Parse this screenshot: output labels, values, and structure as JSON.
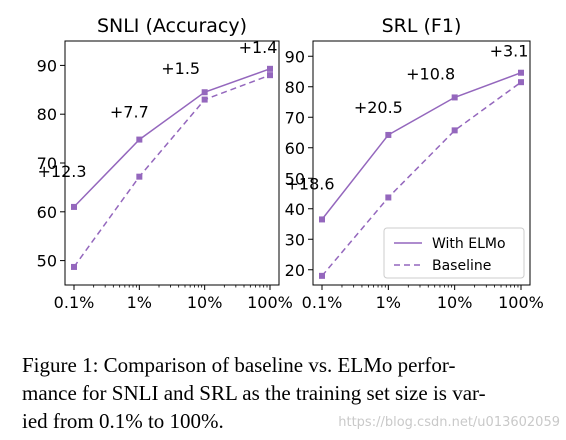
{
  "colors": {
    "series": "#9467bd",
    "axis": "#000000",
    "background": "#ffffff",
    "watermark": "#c9c9c9"
  },
  "chart_data": [
    {
      "type": "line",
      "title": "SNLI (Accuracy)",
      "xlabel": "",
      "ylabel": "",
      "x_scale": "log",
      "categories": [
        "0.1%",
        "1%",
        "10%",
        "100%"
      ],
      "x": [
        0.1,
        1,
        10,
        100
      ],
      "ylim": [
        45,
        95
      ],
      "yticks": [
        50,
        60,
        70,
        80,
        90
      ],
      "series": [
        {
          "name": "With ELMo",
          "style": "solid",
          "values": [
            61,
            74.8,
            84.5,
            89.3
          ]
        },
        {
          "name": "Baseline",
          "style": "dashed",
          "values": [
            48.7,
            67.2,
            83,
            88
          ]
        }
      ],
      "annotations": [
        {
          "text": "+12.3",
          "x": 0.1,
          "y": 61
        },
        {
          "text": "+7.7",
          "x": 1,
          "y": 74.8
        },
        {
          "text": "+1.5",
          "x": 10,
          "y": 84.5
        },
        {
          "text": "+1.4",
          "x": 100,
          "y": 89.3
        }
      ],
      "legend": null,
      "grid": false
    },
    {
      "type": "line",
      "title": "SRL (F1)",
      "xlabel": "",
      "ylabel": "",
      "x_scale": "log",
      "categories": [
        "0.1%",
        "1%",
        "10%",
        "100%"
      ],
      "x": [
        0.1,
        1,
        10,
        100
      ],
      "ylim": [
        15,
        95
      ],
      "yticks": [
        20,
        30,
        40,
        50,
        60,
        70,
        80,
        90
      ],
      "series": [
        {
          "name": "With ELMo",
          "style": "solid",
          "values": [
            36.5,
            64.2,
            76.5,
            84.6
          ]
        },
        {
          "name": "Baseline",
          "style": "dashed",
          "values": [
            18,
            43.7,
            65.7,
            81.5
          ]
        }
      ],
      "annotations": [
        {
          "text": "+18.6",
          "x": 0.1,
          "y": 36.5
        },
        {
          "text": "+20.5",
          "x": 1,
          "y": 64.2
        },
        {
          "text": "+10.8",
          "x": 10,
          "y": 76.5
        },
        {
          "text": "+3.1",
          "x": 100,
          "y": 84.6
        }
      ],
      "legend": "lower-right",
      "grid": false
    }
  ],
  "caption": {
    "lines": [
      "Figure 1: Comparison of baseline vs. ELMo perfor-",
      "mance for SNLI and SRL as the training set size is var-",
      "ied from 0.1% to 100%."
    ]
  },
  "watermark": "https://blog.csdn.net/u013602059"
}
